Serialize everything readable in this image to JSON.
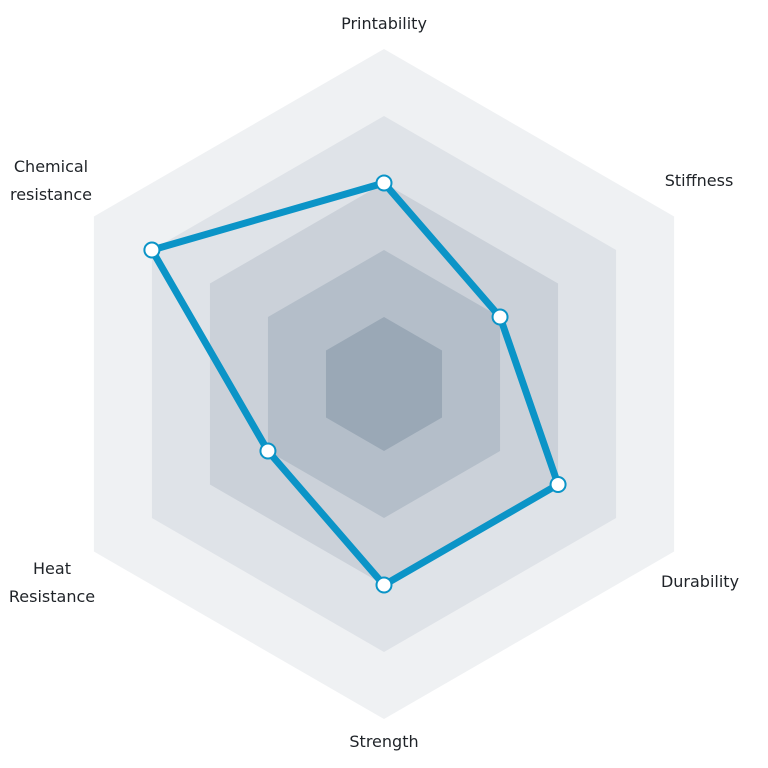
{
  "chart_data": {
    "type": "radar",
    "axes": [
      {
        "key": "printability",
        "label_lines": [
          "Printability"
        ]
      },
      {
        "key": "stiffness",
        "label_lines": [
          "Stiffness"
        ]
      },
      {
        "key": "durability",
        "label_lines": [
          "Durability"
        ]
      },
      {
        "key": "strength",
        "label_lines": [
          "Strength"
        ]
      },
      {
        "key": "heat_resistance",
        "label_lines": [
          "Heat",
          "Resistance"
        ]
      },
      {
        "key": "chemical_resistance",
        "label_lines": [
          "Chemical",
          "resistance"
        ]
      }
    ],
    "levels": 5,
    "range": [
      0,
      5
    ],
    "series": [
      {
        "values": [
          3.0,
          2.0,
          3.0,
          3.0,
          2.0,
          4.0
        ],
        "color": "#0b94c7"
      }
    ],
    "level_colors": [
      "#eff1f3",
      "#dfe3e8",
      "#cbd1d9",
      "#b4bec9",
      "#9aa8b6"
    ],
    "grid": false,
    "legend": "none"
  }
}
